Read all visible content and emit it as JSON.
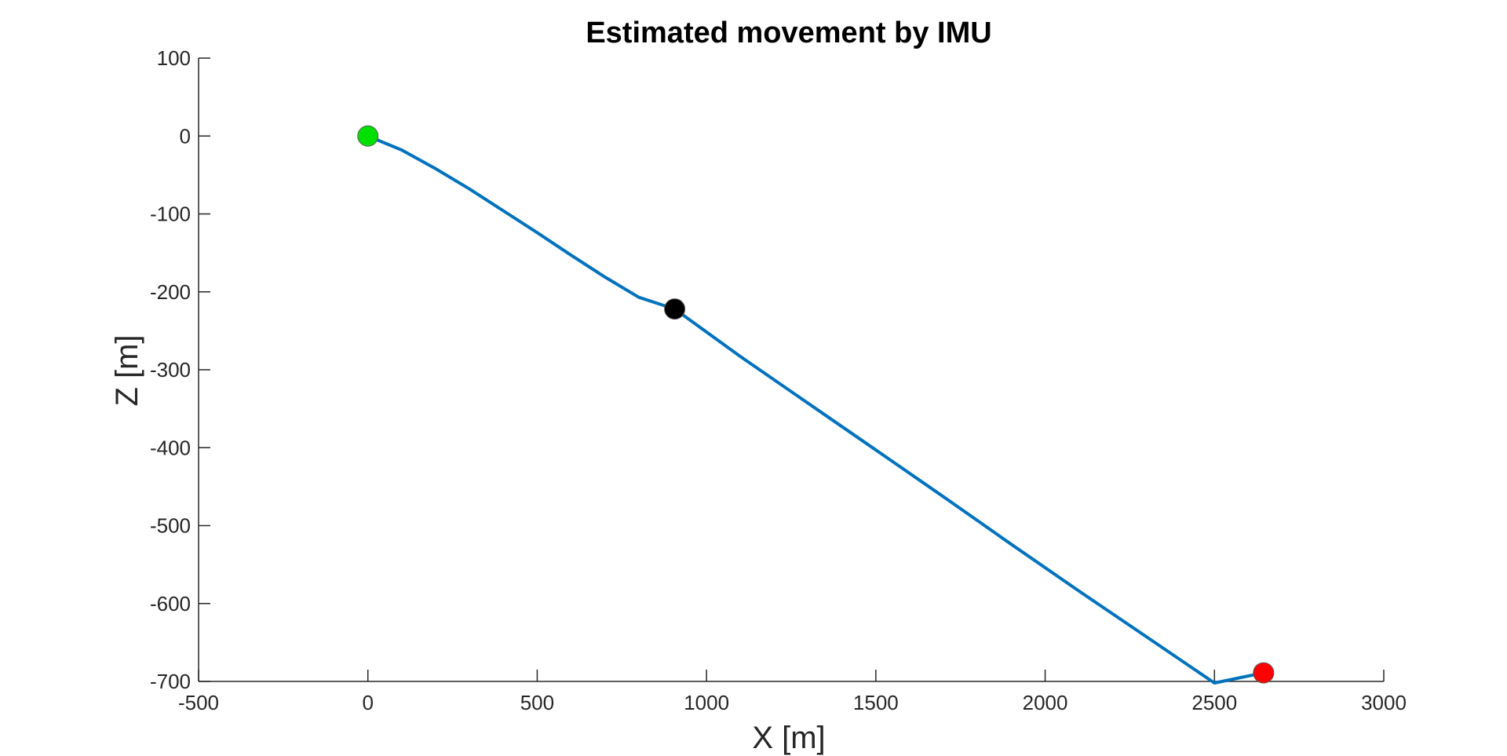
{
  "chart_data": {
    "type": "line",
    "title": "Estimated movement by IMU",
    "xlabel": "X [m]",
    "ylabel": "Z [m]",
    "xlim": [
      -500,
      3000
    ],
    "ylim": [
      -700,
      100
    ],
    "xticks": [
      -500,
      0,
      500,
      1000,
      1500,
      2000,
      2500,
      3000
    ],
    "yticks": [
      100,
      0,
      -100,
      -200,
      -300,
      -400,
      -500,
      -600,
      -700
    ],
    "xtick_labels": [
      "-500",
      "0",
      "500",
      "1000",
      "1500",
      "2000",
      "2500",
      "3000"
    ],
    "ytick_labels": [
      "100",
      "0",
      "-100",
      "-200",
      "-300",
      "-400",
      "-500",
      "-600",
      "-700"
    ],
    "grid": false,
    "series": [
      {
        "color": "#0072BD",
        "x": [
          0,
          100,
          200,
          300,
          400,
          500,
          600,
          700,
          800,
          906,
          1100,
          1300,
          1500,
          1700,
          1900,
          2100,
          2300,
          2500,
          2645
        ],
        "y": [
          0,
          -18,
          -42,
          -68,
          -96,
          -124,
          -153,
          -181,
          -207,
          -222,
          -283,
          -343,
          -403,
          -463,
          -524,
          -584,
          -643,
          -702,
          -689
        ]
      }
    ],
    "markers": [
      {
        "x": 0,
        "y": 0,
        "color": "#00E000"
      },
      {
        "x": 906,
        "y": -222,
        "color": "#000000"
      },
      {
        "x": 2645,
        "y": -689,
        "color": "#FF0000"
      }
    ]
  }
}
